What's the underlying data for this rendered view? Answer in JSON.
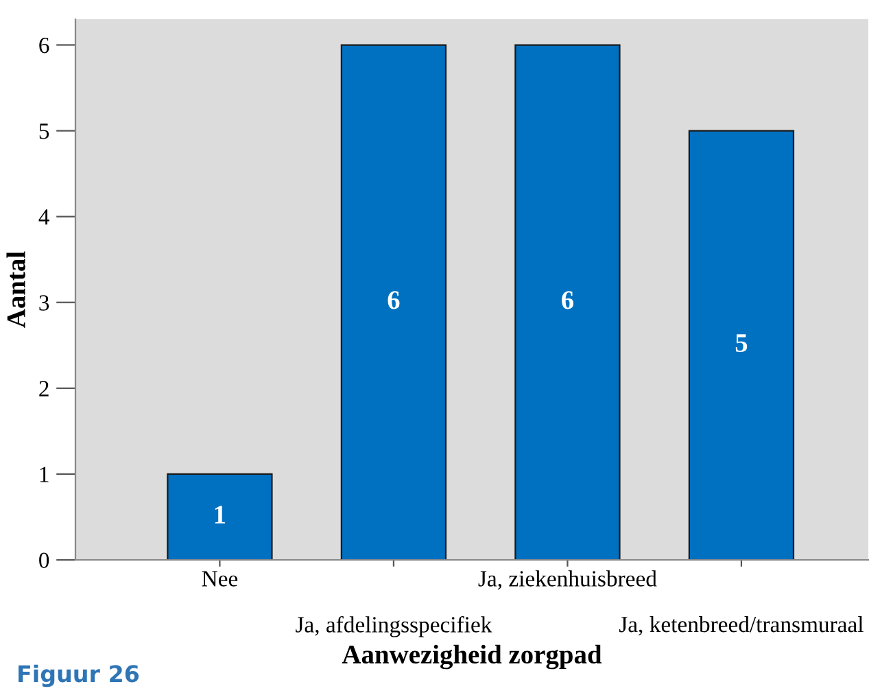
{
  "chart_data": {
    "type": "bar",
    "xlabel": "Aanwezigheid zorgpad",
    "ylabel": "Aantal",
    "categories": [
      "Nee",
      "Ja, afdelingsspecifiek",
      "Ja, ziekenhuisbreed",
      "Ja, ketenbreed/transmuraal"
    ],
    "values": [
      1,
      6,
      6,
      5
    ],
    "color": "#0070c0",
    "data_labels": true,
    "ylim": [
      0,
      6.3
    ],
    "yticks": [
      0,
      1,
      2,
      3,
      4,
      5,
      6
    ],
    "grid": false,
    "legend": false,
    "annotations": [
      "Figuur 26"
    ]
  }
}
